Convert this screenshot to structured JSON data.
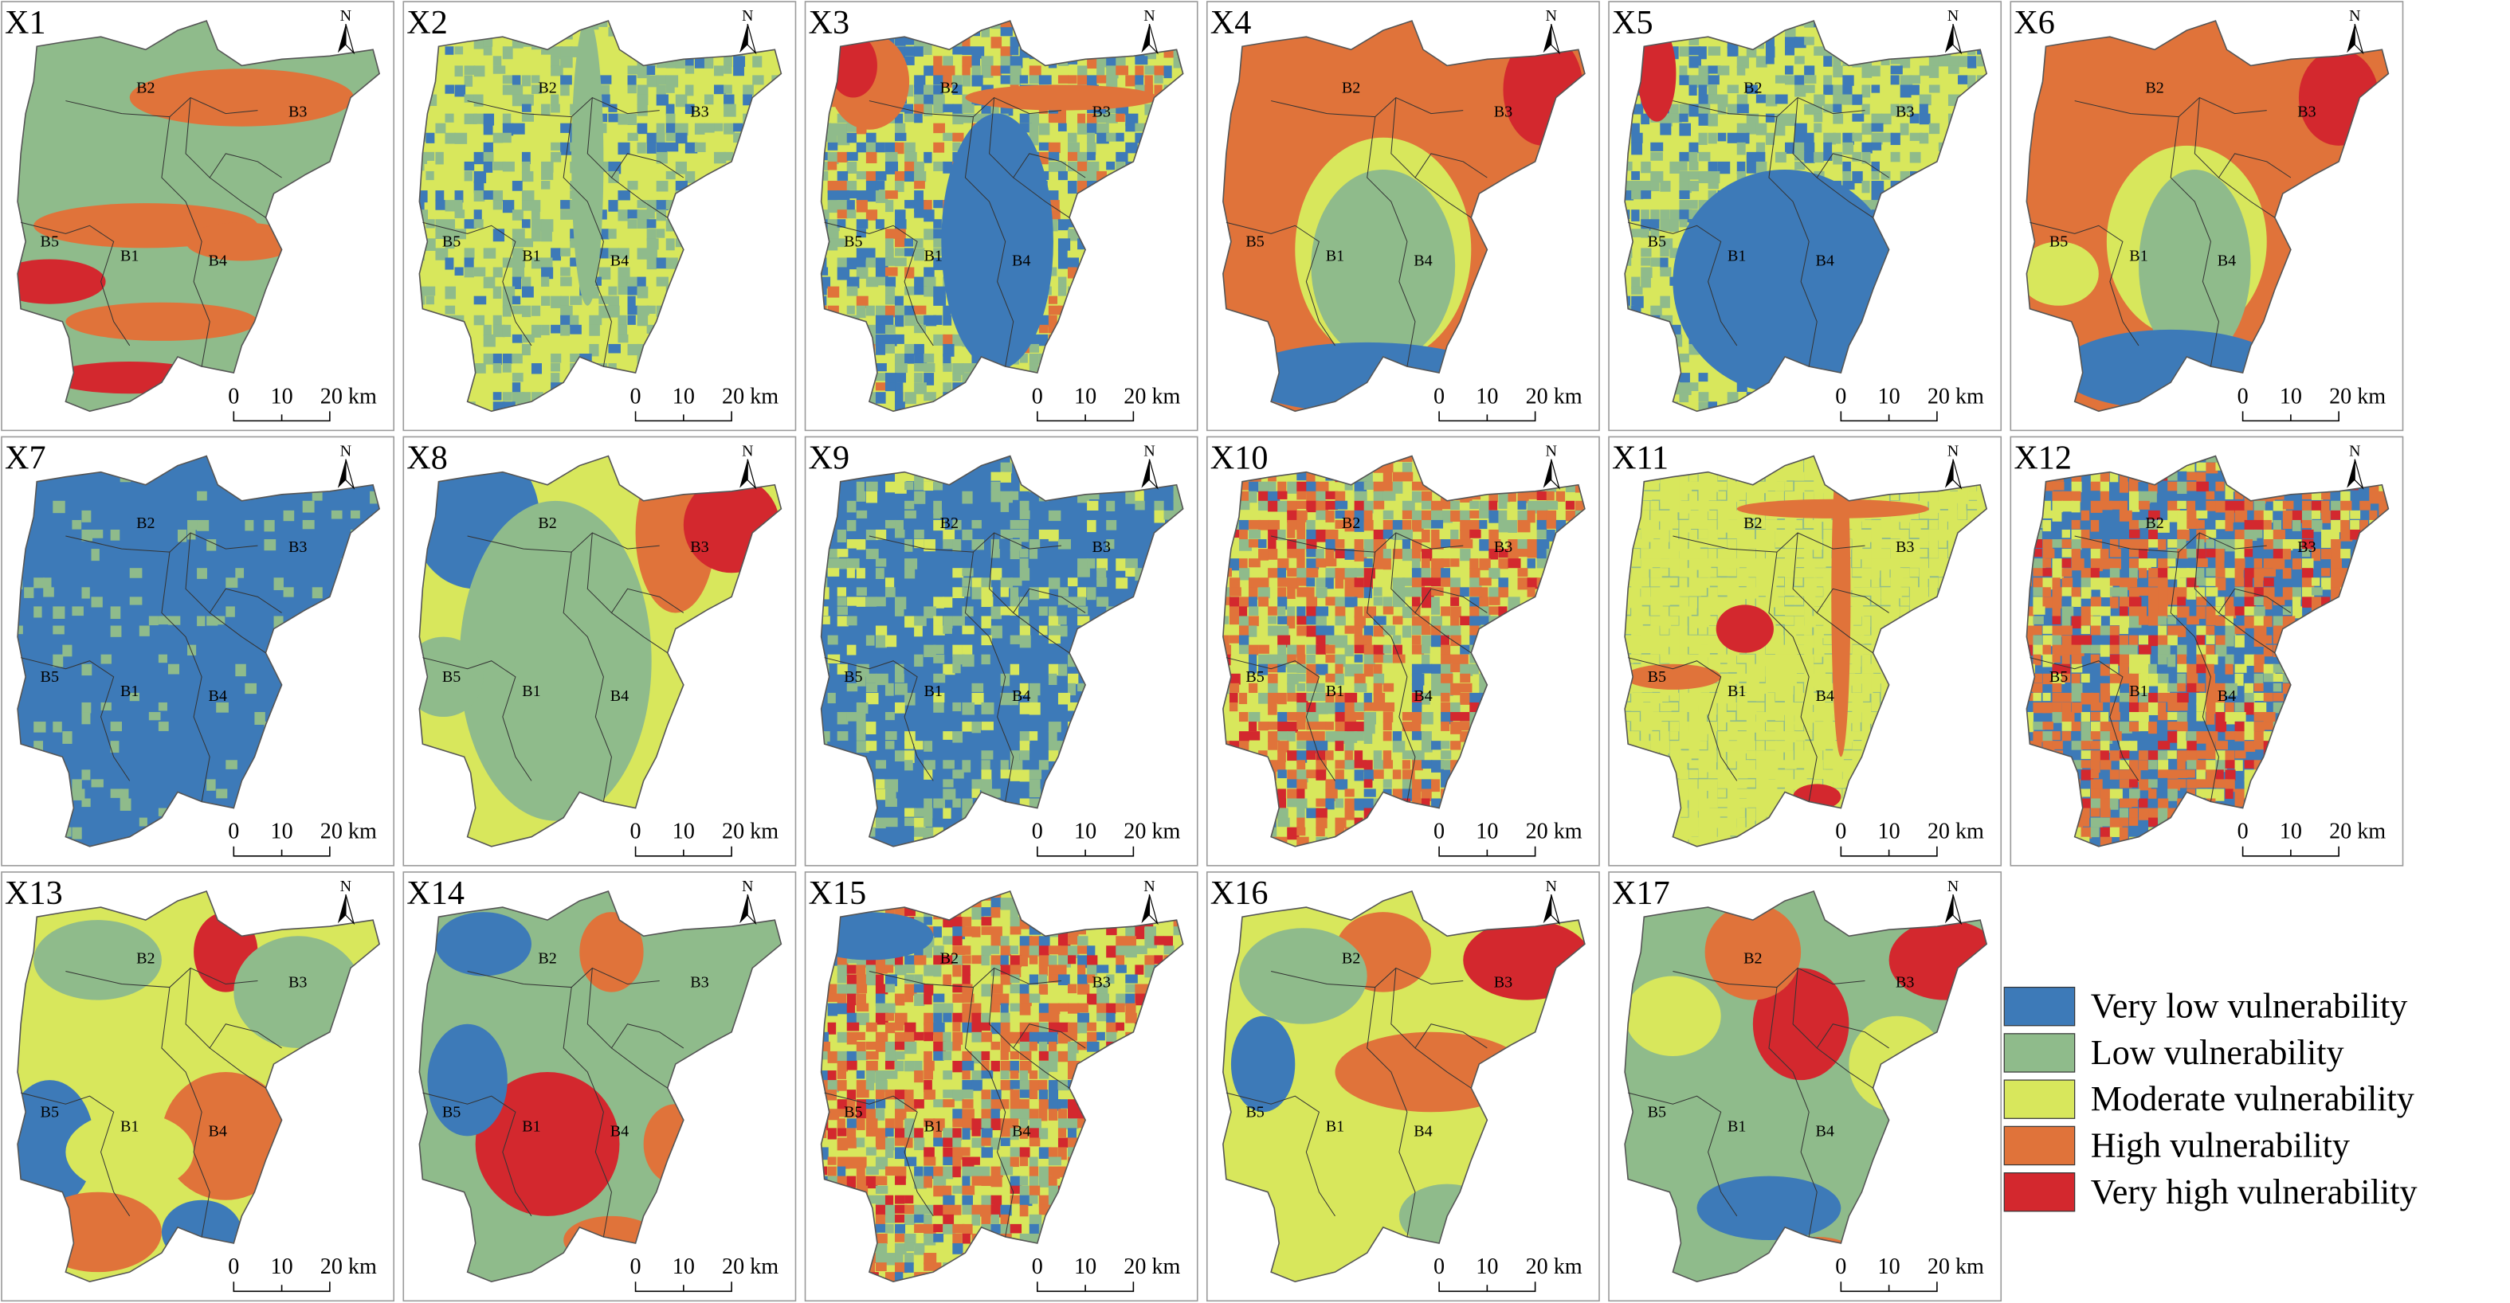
{
  "panels": [
    {
      "label": "X1"
    },
    {
      "label": "X2"
    },
    {
      "label": "X3"
    },
    {
      "label": "X4"
    },
    {
      "label": "X5"
    },
    {
      "label": "X6"
    },
    {
      "label": "X7"
    },
    {
      "label": "X8"
    },
    {
      "label": "X9"
    },
    {
      "label": "X10"
    },
    {
      "label": "X11"
    },
    {
      "label": "X12"
    },
    {
      "label": "X13"
    },
    {
      "label": "X14"
    },
    {
      "label": "X15"
    },
    {
      "label": "X16"
    },
    {
      "label": "X17"
    }
  ],
  "basins": [
    "B1",
    "B2",
    "B3",
    "B4",
    "B5"
  ],
  "scale_bar": [
    "0",
    "10",
    "20 km"
  ],
  "north": "N",
  "legend": [
    {
      "label": "Very low vulnerability",
      "color": "#3d7ab8"
    },
    {
      "label": "Low vulnerability",
      "color": "#8fbb8b"
    },
    {
      "label": "Moderate vulnerability",
      "color": "#d8e75c"
    },
    {
      "label": "High vulnerability",
      "color": "#e0733a"
    },
    {
      "label": "Very high vulnerability",
      "color": "#d3282e"
    }
  ]
}
